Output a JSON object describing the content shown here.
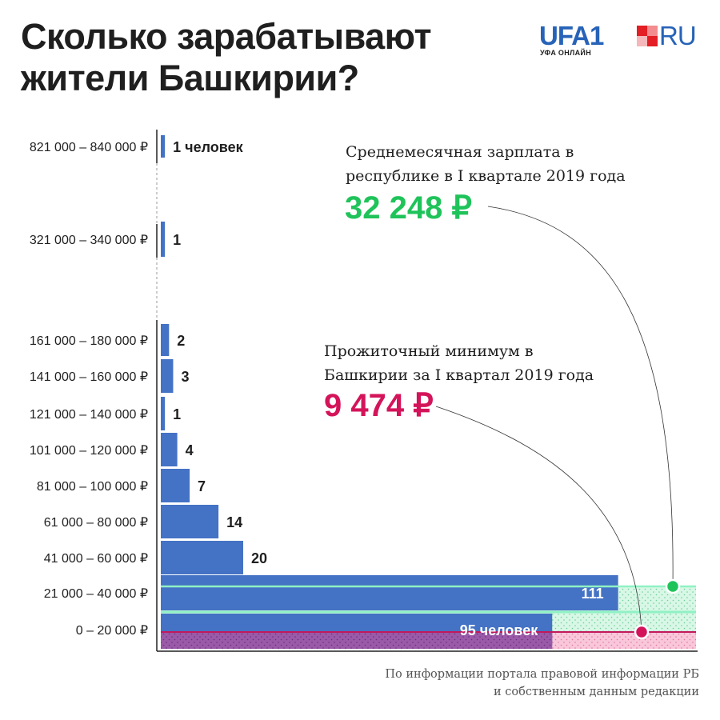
{
  "title_line1": "Сколько зарабатывают",
  "title_line2": "жители Башкирии?",
  "logo": {
    "main": "UFA1",
    "ru": "RU",
    "sub": "УФА ОНЛАЙН",
    "square_colors": [
      "#e31e24",
      "#f28c8f",
      "#f5b7b9",
      "#e31e24"
    ]
  },
  "average": {
    "label_line1": "Среднемесячная зарплата в",
    "label_line2": "республике в I квартале 2019 года",
    "value": "32 248 ₽",
    "color": "#1fc35a"
  },
  "minimum": {
    "label_line1": "Прожиточный минимум в",
    "label_line2": "Башкирии за I квартал 2019 года",
    "value": "9 474 ₽",
    "color": "#d4145a"
  },
  "source_line1": "По информации портала правовой информации РБ",
  "source_line2": "и собственным данным редакции",
  "colors": {
    "bar": "#4472c4",
    "green_zone": "#d8f7e6",
    "green_line": "#8ff2c4",
    "pink_zone": "#f9c6da",
    "purple_zone": "#9a5aa8"
  },
  "chart_data": {
    "type": "bar",
    "orientation": "horizontal",
    "categories": [
      "821 000 – 840 000 ₽",
      "321 000 – 340 000 ₽",
      "161 000 – 180 000 ₽",
      "141 000 – 160 000 ₽",
      "121 000 – 140 000 ₽",
      "101 000 – 120 000 ₽",
      "81 000 – 100 000 ₽",
      "61 000 – 80 000 ₽",
      "41 000 – 60 000 ₽",
      "21 000 – 40 000 ₽",
      "0 – 20 000 ₽"
    ],
    "values": [
      1,
      1,
      2,
      3,
      1,
      4,
      7,
      14,
      20,
      111,
      95
    ],
    "value_labels": [
      "1 человек",
      "1",
      "2",
      "3",
      "1",
      "4",
      "7",
      "14",
      "20",
      "111",
      "95 человек"
    ],
    "reference_values": {
      "average_salary": 32248,
      "subsistence_minimum": 9474
    }
  }
}
